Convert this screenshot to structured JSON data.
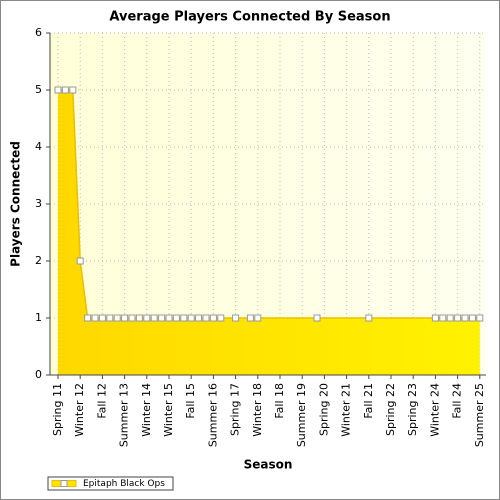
{
  "chart_data": {
    "type": "area",
    "title": "Average Players Connected By Season",
    "x_label": "Season",
    "y_label": "Players Connected",
    "categories": [
      "Spring 11",
      null,
      null,
      "Winter 12",
      null,
      null,
      "Fall 12",
      null,
      null,
      "Summer 13",
      null,
      null,
      "Winter 14",
      null,
      null,
      "Winter 15",
      null,
      null,
      "Fall 15",
      null,
      null,
      "Summer 16",
      null,
      null,
      "Spring 17",
      null,
      null,
      "Winter 18",
      null,
      null,
      "Fall 18",
      null,
      null,
      "Summer 19",
      null,
      null,
      "Spring 20",
      null,
      null,
      "Winter 21",
      null,
      null,
      "Fall 21",
      null,
      null,
      "Spring 22",
      null,
      null,
      "Spring 23",
      null,
      null,
      "Winter 24",
      null,
      null,
      "Fall 24",
      null,
      null,
      "Summer 25"
    ],
    "series": [
      {
        "name": "Epitaph Black Ops",
        "color": "#ffe400",
        "values": [
          5,
          5,
          5,
          2,
          1,
          1,
          1,
          1,
          1,
          1,
          1,
          1,
          1,
          1,
          1,
          1,
          1,
          1,
          1,
          1,
          1,
          1,
          1,
          null,
          1,
          null,
          1,
          1,
          null,
          null,
          null,
          null,
          null,
          null,
          null,
          1,
          null,
          null,
          null,
          null,
          null,
          null,
          1,
          null,
          null,
          null,
          null,
          null,
          null,
          null,
          null,
          1,
          1,
          1,
          1,
          1,
          1,
          1
        ]
      }
    ],
    "connect_gaps": true,
    "ylim": [
      0,
      6
    ],
    "yticks": [
      0,
      1,
      2,
      3,
      4,
      5,
      6
    ],
    "grid": true,
    "legend": "bottom-left"
  }
}
